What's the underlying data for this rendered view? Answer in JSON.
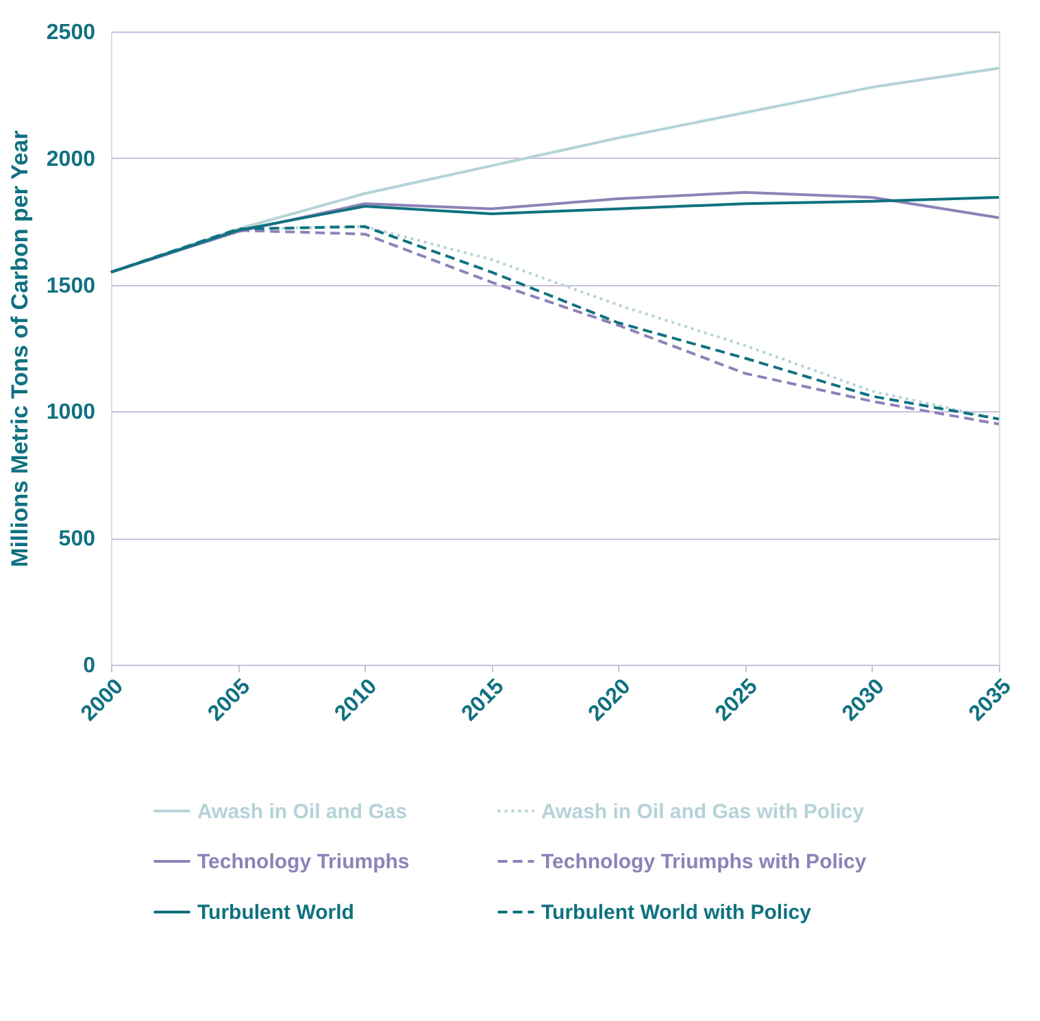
{
  "chart_data": {
    "type": "line",
    "ylabel": "Millions Metric Tons of Carbon per Year",
    "x": [
      2000,
      2005,
      2010,
      2015,
      2020,
      2025,
      2030,
      2035
    ],
    "xlim": [
      2000,
      2035
    ],
    "xticks": [
      2000,
      2005,
      2010,
      2015,
      2020,
      2025,
      2030,
      2035
    ],
    "ylim": [
      0,
      2500
    ],
    "yticks": [
      0,
      500,
      1000,
      1500,
      2000,
      2500
    ],
    "grid": "y",
    "legend": "bottom",
    "marker": "none",
    "series": [
      {
        "name": "Awash in Oil and Gas",
        "color": "#b5d3d8",
        "line_style": "solid",
        "values": [
          1550,
          1720,
          1860,
          1970,
          2080,
          2180,
          2280,
          2355
        ]
      },
      {
        "name": "Awash in Oil and Gas with Policy",
        "color": "#b5d3d8",
        "line_style": "dotted",
        "values": [
          1550,
          1720,
          1730,
          1600,
          1420,
          1260,
          1080,
          970
        ]
      },
      {
        "name": "Technology Triumphs",
        "color": "#8d82b8",
        "line_style": "solid",
        "values": [
          1550,
          1710,
          1820,
          1800,
          1840,
          1865,
          1845,
          1765
        ]
      },
      {
        "name": "Technology Triumphs with Policy",
        "color": "#8d82b8",
        "line_style": "dashed",
        "values": [
          1550,
          1715,
          1700,
          1510,
          1340,
          1150,
          1040,
          950
        ]
      },
      {
        "name": "Turbulent World",
        "color": "#0f7180",
        "line_style": "solid",
        "values": [
          1550,
          1715,
          1810,
          1780,
          1800,
          1820,
          1830,
          1845
        ]
      },
      {
        "name": "Turbulent World with Policy",
        "color": "#0f7180",
        "line_style": "dashed",
        "values": [
          1550,
          1720,
          1730,
          1550,
          1350,
          1210,
          1060,
          970
        ]
      }
    ]
  }
}
